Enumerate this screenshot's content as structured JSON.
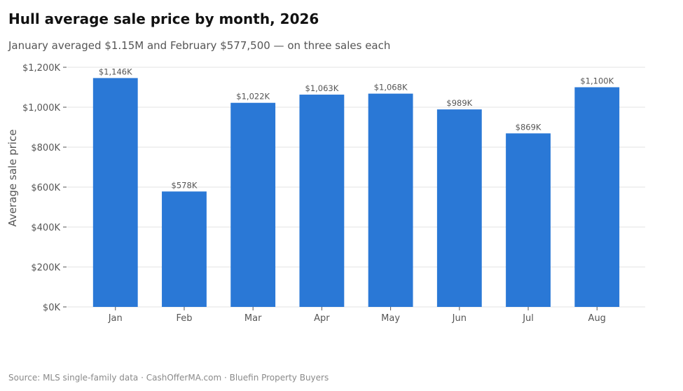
{
  "page": {
    "title": "Hull average sale price by month, 2026",
    "subtitle": "January averaged $1.15M and February $577,500 — on three sales each",
    "source": "Source: MLS single-family data  ·  CashOfferMA.com  ·  Bluefin Property Buyers"
  },
  "chart_data": {
    "type": "bar",
    "categories": [
      "Jan",
      "Feb",
      "Mar",
      "Apr",
      "May",
      "Jun",
      "Jul",
      "Aug"
    ],
    "values": [
      1146,
      578,
      1022,
      1063,
      1068,
      989,
      869,
      1100
    ],
    "value_labels": [
      "$1,146K",
      "$578K",
      "$1,022K",
      "$1,063K",
      "$1,068K",
      "$989K",
      "$869K",
      "$1,100K"
    ],
    "ylabel": "Average sale price",
    "yticks": [
      0,
      200,
      400,
      600,
      800,
      1000,
      1200
    ],
    "ytick_labels": [
      "$0K",
      "$200K",
      "$400K",
      "$600K",
      "$800K",
      "$1,000K",
      "$1,200K"
    ],
    "ylim": [
      0,
      1200
    ],
    "grid": true,
    "bar_color": "#2a78d6"
  }
}
